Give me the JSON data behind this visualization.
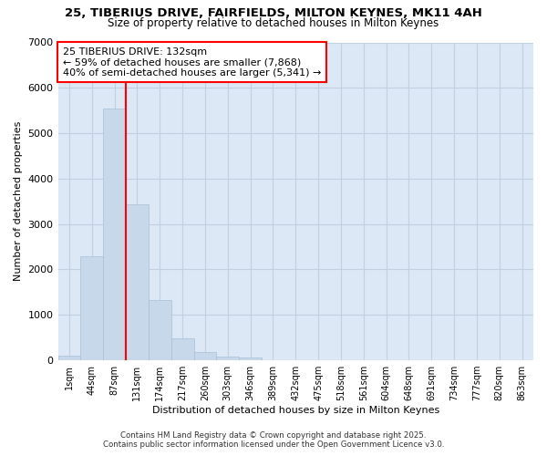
{
  "title_line1": "25, TIBERIUS DRIVE, FAIRFIELDS, MILTON KEYNES, MK11 4AH",
  "title_line2": "Size of property relative to detached houses in Milton Keynes",
  "xlabel": "Distribution of detached houses by size in Milton Keynes",
  "ylabel": "Number of detached properties",
  "categories": [
    "1sqm",
    "44sqm",
    "87sqm",
    "131sqm",
    "174sqm",
    "217sqm",
    "260sqm",
    "303sqm",
    "346sqm",
    "389sqm",
    "432sqm",
    "475sqm",
    "518sqm",
    "561sqm",
    "604sqm",
    "648sqm",
    "691sqm",
    "734sqm",
    "777sqm",
    "820sqm",
    "863sqm"
  ],
  "values": [
    100,
    2300,
    5550,
    3430,
    1320,
    480,
    185,
    90,
    60,
    0,
    0,
    0,
    0,
    0,
    0,
    0,
    0,
    0,
    0,
    0,
    0
  ],
  "bar_color": "#c8d8eb",
  "bar_edge_color": "#a8c0d8",
  "vline_color": "red",
  "annotation_text": "25 TIBERIUS DRIVE: 132sqm\n← 59% of detached houses are smaller (7,868)\n40% of semi-detached houses are larger (5,341) →",
  "annotation_box_color": "white",
  "annotation_box_edge_color": "red",
  "ylim": [
    0,
    7000
  ],
  "yticks": [
    0,
    1000,
    2000,
    3000,
    4000,
    5000,
    6000,
    7000
  ],
  "plot_bg_color": "#dce8f5",
  "fig_bg_color": "#ffffff",
  "grid_color": "#c0d0e0",
  "footer_line1": "Contains HM Land Registry data © Crown copyright and database right 2025.",
  "footer_line2": "Contains public sector information licensed under the Open Government Licence v3.0."
}
